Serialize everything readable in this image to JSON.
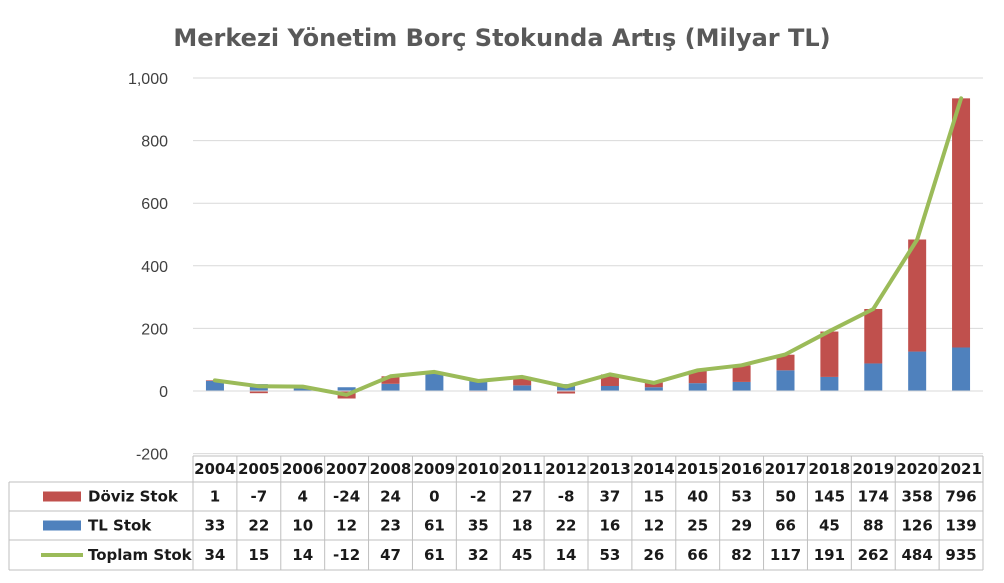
{
  "colors": {
    "doviz": "#c0504d",
    "tl": "#4f81bd",
    "toplam": "#9bbb59",
    "gridline": "#d9d9d9",
    "table_border": "#bfbfbf"
  },
  "chart_data": {
    "type": "bar",
    "title": "Merkezi Yönetim Borç Stokunda Artış (Milyar TL)",
    "xlabel": "",
    "ylabel": "",
    "ylim": [
      -200,
      1000
    ],
    "yticks": [
      -200,
      0,
      200,
      400,
      600,
      800,
      1000
    ],
    "ytick_labels": [
      "-200",
      "0",
      "200",
      "400",
      "600",
      "800",
      "1,000"
    ],
    "stacked": true,
    "grid": true,
    "legend_placement": "data-table",
    "categories": [
      "2004",
      "2005",
      "2006",
      "2007",
      "2008",
      "2009",
      "2010",
      "2011",
      "2012",
      "2013",
      "2014",
      "2015",
      "2016",
      "2017",
      "2018",
      "2019",
      "2020",
      "2021"
    ],
    "series": [
      {
        "name": "Döviz Stok",
        "type": "bar",
        "values": [
          1,
          -7,
          4,
          -24,
          24,
          0,
          -2,
          27,
          -8,
          37,
          15,
          40,
          53,
          50,
          145,
          174,
          358,
          796
        ]
      },
      {
        "name": "TL Stok",
        "type": "bar",
        "values": [
          33,
          22,
          10,
          12,
          23,
          61,
          35,
          18,
          22,
          16,
          12,
          25,
          29,
          66,
          45,
          88,
          126,
          139
        ]
      },
      {
        "name": "Toplam Stok",
        "type": "line",
        "values": [
          34,
          15,
          14,
          -12,
          47,
          61,
          32,
          45,
          14,
          53,
          26,
          66,
          82,
          117,
          191,
          262,
          484,
          935
        ]
      }
    ]
  }
}
